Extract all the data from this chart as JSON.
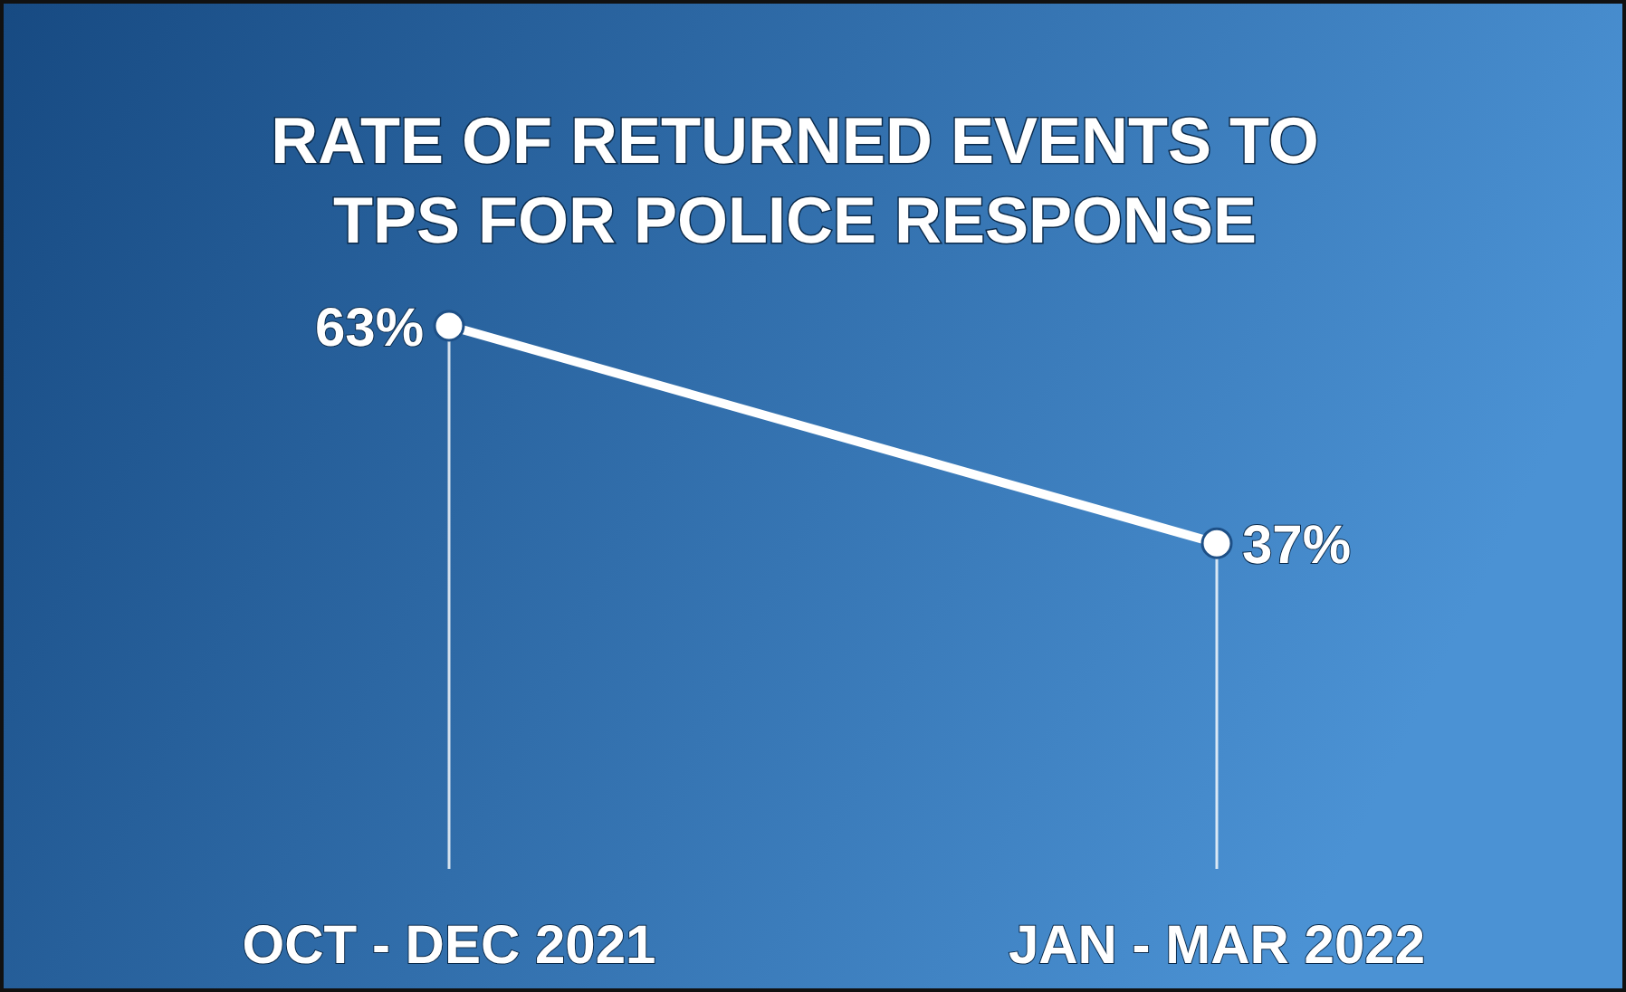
{
  "chart_data": {
    "type": "line",
    "title": "RATE OF RETURNED EVENTS TO TPS FOR POLICE RESPONSE",
    "categories": [
      "OCT - DEC 2021",
      "JAN - MAR 2022"
    ],
    "values": [
      63,
      37
    ],
    "value_labels": [
      "63%",
      "37%"
    ],
    "color": "#ffffff",
    "marker": "circle"
  }
}
